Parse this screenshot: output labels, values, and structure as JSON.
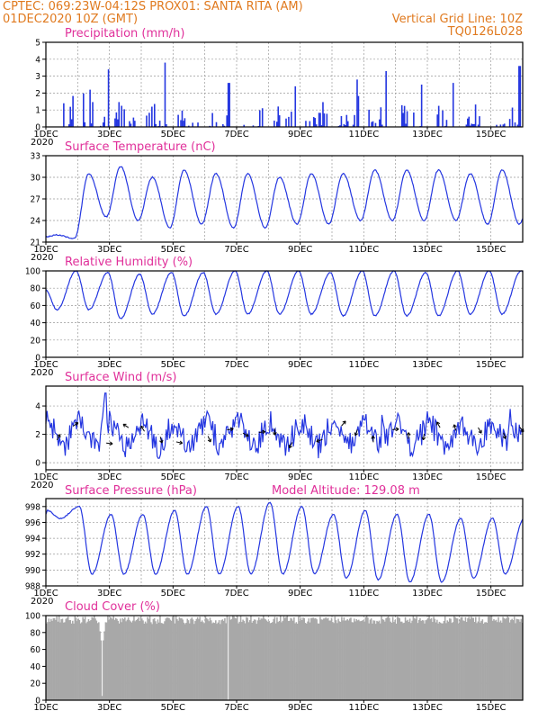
{
  "header": {
    "line1_left": "CPTEC:   069:23W-04:12S   PROX01: SANTA RITA (AM)",
    "line2_left": "01DEC2020 10Z (GMT)",
    "line2_right": "Vertical Grid Line: 10Z",
    "line3_right": "TQ0126L028"
  },
  "x_ticks": [
    "1DEC",
    "3DEC",
    "5DEC",
    "7DEC",
    "9DEC",
    "11DEC",
    "13DEC",
    "15DEC"
  ],
  "x_sub": "2020",
  "chart_data": [
    {
      "type": "bar",
      "title": "Precipitation (mm/h)",
      "ylim": [
        0,
        5
      ],
      "yticks": [
        "0",
        "1",
        "2",
        "3",
        "4",
        "5"
      ],
      "x_days": [
        1,
        16
      ],
      "notable_peaks": [
        {
          "day": 2.4,
          "value": 2.2
        },
        {
          "day": 2.95,
          "value": 3.4
        },
        {
          "day": 4.75,
          "value": 3.8
        },
        {
          "day": 6.75,
          "value": 2.6
        },
        {
          "day": 8.85,
          "value": 2.4
        },
        {
          "day": 10.8,
          "value": 2.8
        },
        {
          "day": 11.7,
          "value": 3.3
        },
        {
          "day": 12.8,
          "value": 2.5
        },
        {
          "day": 13.8,
          "value": 2.6
        },
        {
          "day": 15.9,
          "value": 3.6
        }
      ],
      "color": "#2436e0"
    },
    {
      "type": "line",
      "title": "Surface Temperature (nC)",
      "ylim": [
        21,
        33
      ],
      "yticks": [
        "21",
        "24",
        "27",
        "30",
        "33"
      ],
      "daily_max": [
        22.0,
        30.5,
        31.5,
        30.0,
        31.0,
        30.5,
        30.5,
        30.0,
        30.5,
        30.5,
        31.0,
        31.0,
        31.0,
        30.5,
        31.0,
        30.5
      ],
      "daily_min": [
        21.5,
        24.5,
        24.0,
        23.0,
        23.5,
        23.0,
        23.0,
        23.5,
        23.5,
        24.0,
        24.0,
        24.0,
        24.0,
        23.5,
        23.5,
        23.5
      ],
      "color": "#2436e0"
    },
    {
      "type": "line",
      "title": "Relative Humidity (%)",
      "ylim": [
        0,
        100
      ],
      "yticks": [
        "0",
        "20",
        "40",
        "60",
        "80",
        "100"
      ],
      "daily_max": [
        100,
        98,
        96,
        98,
        98,
        100,
        100,
        100,
        98,
        100,
        100,
        98,
        100,
        100,
        100,
        100
      ],
      "daily_min": [
        55,
        55,
        45,
        50,
        48,
        50,
        50,
        50,
        50,
        48,
        48,
        48,
        48,
        50,
        50,
        52
      ],
      "color": "#2436e0"
    },
    {
      "type": "line",
      "title": "Surface Wind (m/s)",
      "ylim": [
        -0.5,
        5.4
      ],
      "yticks": [
        "0",
        "2",
        "4"
      ],
      "speed_peaks": [
        {
          "day": 2.85,
          "value": 4.9
        },
        {
          "day": 6.7,
          "value": 3.6
        },
        {
          "day": 11.6,
          "value": 4.1
        },
        {
          "day": 15.6,
          "value": 3.9
        }
      ],
      "arrow_days": [
        1.35,
        1.85,
        2.9,
        3.6,
        4.1,
        4.6,
        5.1,
        6.1,
        6.7,
        7.2,
        7.7,
        8.2,
        8.75,
        9.7,
        10.3,
        10.8,
        11.3,
        11.9,
        12.4,
        12.9,
        13.4,
        13.9,
        14.6,
        15.4,
        15.9
      ],
      "arrow_color": "#000000",
      "color": "#2436e0"
    },
    {
      "type": "line",
      "title": "Surface Pressure (hPa)",
      "annotation": "Model Altitude: 129.08 m",
      "ylim": [
        988,
        999
      ],
      "yticks": [
        "988",
        "990",
        "992",
        "994",
        "996",
        "998"
      ],
      "daily_max": [
        997.5,
        998.0,
        997.0,
        997.0,
        997.5,
        998.0,
        998.0,
        998.5,
        998.0,
        997.0,
        997.5,
        997.0,
        997.0,
        996.5,
        996.5,
        996.5
      ],
      "daily_min": [
        996.5,
        989.5,
        989.5,
        989.5,
        989.5,
        989.5,
        989.5,
        989.5,
        989.5,
        989.0,
        988.8,
        988.5,
        988.5,
        989.0,
        989.5,
        989.5
      ],
      "color": "#2436e0"
    },
    {
      "type": "area",
      "title": "Cloud Cover (%)",
      "ylim": [
        0,
        100
      ],
      "yticks": [
        "0",
        "20",
        "40",
        "60",
        "80",
        "100"
      ],
      "typical_value": 95,
      "dips": [
        {
          "day": 2.75,
          "value": 5
        },
        {
          "day": 6.7,
          "value": 0
        }
      ],
      "color": "#a8a8a8"
    }
  ]
}
